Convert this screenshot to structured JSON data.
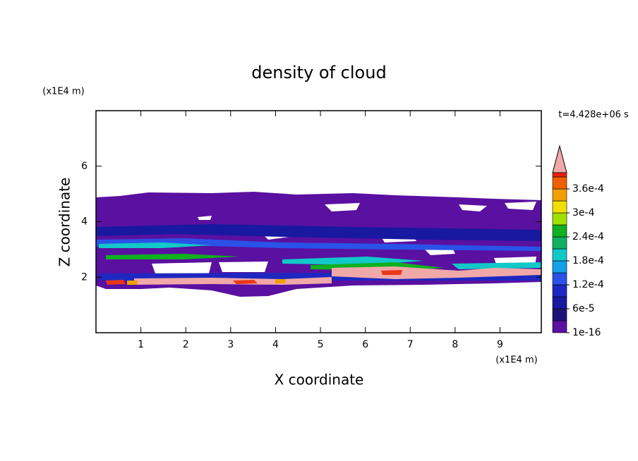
{
  "chart_data": {
    "type": "contour",
    "title": "density of cloud",
    "xlabel": "X coordinate",
    "ylabel": "Z coordinate",
    "x_unit": "(x1E4 m)",
    "y_unit": "(x1E4 m)",
    "annotation": "t=4.428e+06 s",
    "xlim": [
      0,
      9.92
    ],
    "ylim": [
      0,
      8
    ],
    "xticks": [
      1,
      2,
      3,
      4,
      5,
      6,
      7,
      8,
      9
    ],
    "yticks": [
      2,
      4,
      6
    ],
    "colorbar": {
      "lim": [
        0,
        0.00039
      ],
      "ticks": [
        {
          "value": 1e-16,
          "label": "1e-16"
        },
        {
          "value": 6e-05,
          "label": "6e-5"
        },
        {
          "value": 0.00012,
          "label": "1.2e-4"
        },
        {
          "value": 0.00018,
          "label": "1.8e-4"
        },
        {
          "value": 0.00024,
          "label": "2.4e-4"
        },
        {
          "value": 0.0003,
          "label": "3e-4"
        },
        {
          "value": 0.00036,
          "label": "3.6e-4"
        }
      ],
      "colors": [
        "#5a10a0",
        "#1e1478",
        "#1818a0",
        "#1e28c0",
        "#2a52e8",
        "#12a0e8",
        "#12c8c8",
        "#10b060",
        "#10b020",
        "#a0e000",
        "#f0e000",
        "#f0a000",
        "#f06000",
        "#e82010"
      ]
    }
  }
}
